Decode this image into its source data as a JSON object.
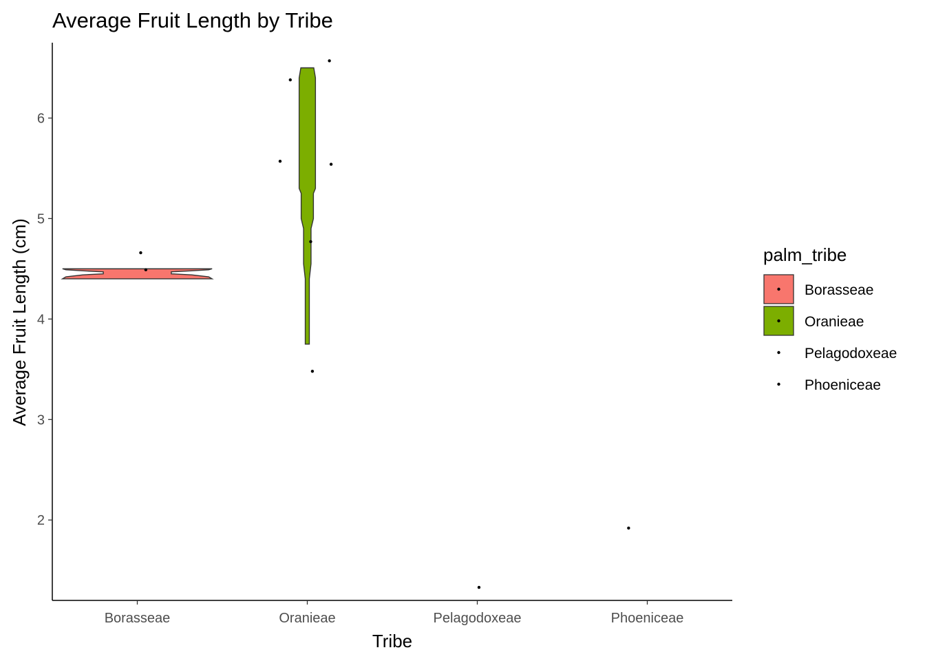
{
  "chart_data": {
    "type": "violin",
    "title": "Average Fruit Length by Tribe",
    "xlabel": "Tribe",
    "ylabel": "Average Fruit Length (cm)",
    "categories": [
      "Borasseae",
      "Oranieae",
      "Pelagodoxeae",
      "Phoeniceae"
    ],
    "ylim": [
      1.2,
      6.75
    ],
    "yticks": [
      2,
      3,
      4,
      5,
      6
    ],
    "grid": false,
    "legend": {
      "title": "palm_tribe",
      "position": "right",
      "entries": [
        {
          "label": "Borasseae",
          "fill": "#F8766D",
          "has_box": true
        },
        {
          "label": "Oranieae",
          "fill": "#7CAE00",
          "has_box": true
        },
        {
          "label": "Pelagodoxeae",
          "fill": null,
          "has_box": false
        },
        {
          "label": "Phoeniceae",
          "fill": null,
          "has_box": false
        }
      ]
    },
    "violins": [
      {
        "category": "Borasseae",
        "fill": "#F8766D",
        "profile": [
          [
            4.4,
            0.44
          ],
          [
            4.42,
            0.42
          ],
          [
            4.44,
            0.32
          ],
          [
            4.45,
            0.2
          ],
          [
            4.47,
            0.2
          ],
          [
            4.48,
            0.32
          ],
          [
            4.49,
            0.42
          ],
          [
            4.5,
            0.44
          ]
        ]
      },
      {
        "category": "Oranieae",
        "fill": "#7CAE00",
        "profile": [
          [
            3.75,
            0.012
          ],
          [
            4.4,
            0.012
          ],
          [
            4.55,
            0.022
          ],
          [
            4.9,
            0.022
          ],
          [
            5.0,
            0.036
          ],
          [
            5.25,
            0.036
          ],
          [
            5.3,
            0.048
          ],
          [
            6.4,
            0.048
          ],
          [
            6.5,
            0.038
          ]
        ]
      }
    ],
    "points": [
      {
        "category": "Borasseae",
        "jitter": 0.02,
        "y": 4.66
      },
      {
        "category": "Borasseae",
        "jitter": 0.05,
        "y": 4.49
      },
      {
        "category": "Oranieae",
        "jitter": -0.1,
        "y": 6.38
      },
      {
        "category": "Oranieae",
        "jitter": 0.13,
        "y": 6.57
      },
      {
        "category": "Oranieae",
        "jitter": -0.16,
        "y": 5.57
      },
      {
        "category": "Oranieae",
        "jitter": 0.14,
        "y": 5.54
      },
      {
        "category": "Oranieae",
        "jitter": 0.02,
        "y": 4.77
      },
      {
        "category": "Oranieae",
        "jitter": 0.03,
        "y": 3.48
      },
      {
        "category": "Pelagodoxeae",
        "jitter": 0.01,
        "y": 1.33
      },
      {
        "category": "Phoeniceae",
        "jitter": -0.11,
        "y": 1.92
      }
    ]
  }
}
